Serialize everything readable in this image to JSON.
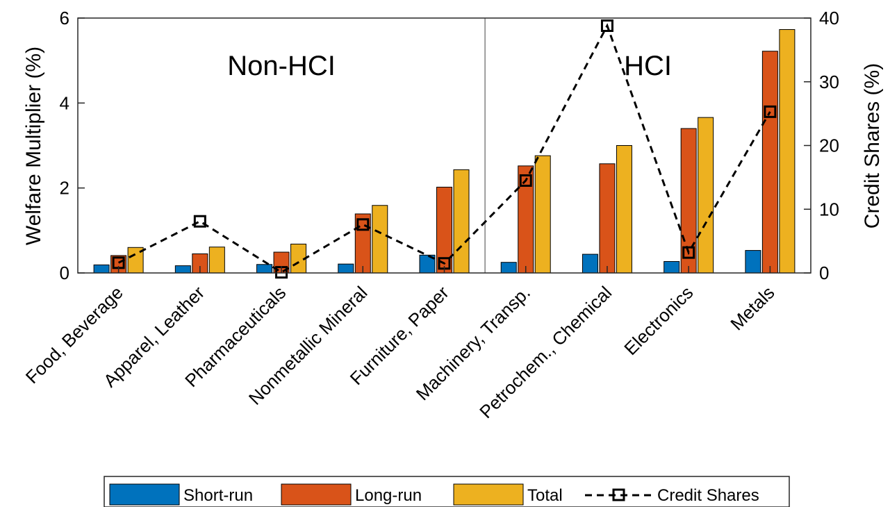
{
  "chart_data": {
    "type": "bar",
    "categories": [
      "Food, Beverage",
      "Apparel, Leather",
      "Pharmaceuticals",
      "Nonmetallic Mineral",
      "Furniture, Paper",
      "Machinery, Transp.",
      "Petrochem., Chemical",
      "Electronics",
      "Metals"
    ],
    "series": [
      {
        "name": "Short-run",
        "color": "#0072BD",
        "values": [
          0.19,
          0.17,
          0.2,
          0.21,
          0.42,
          0.25,
          0.44,
          0.27,
          0.53
        ]
      },
      {
        "name": "Long-run",
        "color": "#D95319",
        "values": [
          0.41,
          0.45,
          0.49,
          1.39,
          2.02,
          2.52,
          2.57,
          3.4,
          5.22
        ]
      },
      {
        "name": "Total",
        "color": "#EDB120",
        "values": [
          0.6,
          0.61,
          0.68,
          1.59,
          2.43,
          2.76,
          3.0,
          3.66,
          5.73
        ]
      }
    ],
    "line_series": {
      "name": "Credit Shares",
      "axis": "right",
      "style": "dashed, square markers",
      "values": [
        1.6,
        8.1,
        0.1,
        7.6,
        1.5,
        14.5,
        38.8,
        3.2,
        25.3
      ]
    },
    "ylabel": "Welfare Multiplier (%)",
    "ylim": [
      0,
      6
    ],
    "yticks": [
      "0",
      "2",
      "4",
      "6"
    ],
    "ylabel_right": "Credit Shares (%)",
    "ylim_right": [
      0,
      40
    ],
    "yticks_right": [
      "0",
      "10",
      "20",
      "30",
      "40"
    ],
    "regions": [
      {
        "label": "Non-HCI",
        "categories": [
          "Food, Beverage",
          "Apparel, Leather",
          "Pharmaceuticals",
          "Nonmetallic Mineral",
          "Furniture, Paper"
        ]
      },
      {
        "label": "HCI",
        "categories": [
          "Machinery, Transp.",
          "Petrochem., Chemical",
          "Electronics",
          "Metals"
        ]
      }
    ],
    "legend": {
      "placement": "bottom",
      "entries": [
        "Short-run",
        "Long-run",
        "Total",
        "Credit Shares"
      ]
    },
    "grid": false
  }
}
